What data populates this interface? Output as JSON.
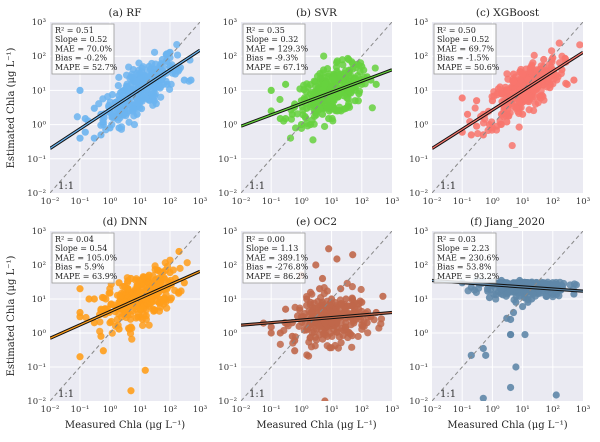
{
  "figure": {
    "ylabel": "Estimated Chla (μg L⁻¹)",
    "xlabel": "Measured Chla  (μg L⁻¹)",
    "one_to_one_label": "1:1",
    "axis_min_exp": -2,
    "axis_max_exp": 3,
    "tick_labels": [
      "10⁻²",
      "10⁻¹",
      "10⁰",
      "10¹",
      "10²",
      "10³"
    ],
    "background_color": "#eaeaf2",
    "grid_color": "#ffffff",
    "regression_outline_color": "#111111",
    "identity_line_color": "#888888"
  },
  "chart_data": [
    {
      "type": "scatter",
      "title": "(a) RF",
      "color": "#6cb4f0",
      "xlabel": "",
      "ylabel": "Estimated Chla (μg L⁻¹)",
      "xlim": [
        0.01,
        1000
      ],
      "ylim": [
        0.01,
        1000
      ],
      "scale": "log",
      "stats": {
        "R2": "0.51",
        "Slope": "0.52",
        "MAE": "70.0%",
        "Bias": "-0.2%",
        "MAPE": "52.7%"
      },
      "fit_line": {
        "x": [
          0.01,
          1000
        ],
        "y": [
          0.2,
          150
        ]
      },
      "points": {
        "x": [
          0.1,
          0.1,
          0.15,
          0.15,
          0.3,
          0.3,
          0.5,
          0.6,
          1,
          1,
          2,
          2,
          3,
          4,
          5,
          5,
          6,
          8,
          10,
          10,
          12,
          15,
          20,
          20,
          25,
          30,
          40,
          50,
          60,
          80,
          100,
          100,
          150,
          200,
          300,
          500,
          0.5,
          2,
          8,
          30
        ],
        "y": [
          10,
          0.4,
          0.6,
          1.5,
          0.4,
          3,
          0.5,
          1,
          0.8,
          3,
          2,
          7,
          10,
          5,
          15,
          25,
          3,
          10,
          10,
          30,
          6,
          20,
          15,
          50,
          8,
          40,
          20,
          60,
          30,
          15,
          50,
          130,
          30,
          40,
          20,
          20,
          2,
          0.8,
          2,
          5
        ]
      }
    },
    {
      "type": "scatter",
      "title": "(b) SVR",
      "color": "#66d13e",
      "xlabel": "",
      "ylabel": "",
      "xlim": [
        0.01,
        1000
      ],
      "ylim": [
        0.01,
        1000
      ],
      "scale": "log",
      "stats": {
        "R2": "0.35",
        "Slope": "0.32",
        "MAE": "129.3%",
        "Bias": "-9.3%",
        "MAPE": "67.1%"
      },
      "fit_line": {
        "x": [
          0.01,
          1000
        ],
        "y": [
          0.9,
          40
        ]
      },
      "points": {
        "x": [
          0.1,
          0.1,
          0.3,
          0.3,
          0.5,
          0.6,
          1,
          1,
          1.5,
          2,
          3,
          4,
          5,
          5,
          6,
          8,
          10,
          10,
          12,
          15,
          20,
          20,
          25,
          30,
          40,
          50,
          60,
          80,
          100,
          100,
          150,
          200,
          300,
          0.2,
          2,
          8,
          30,
          60
        ],
        "y": [
          2.5,
          10,
          1.5,
          15,
          2,
          4,
          1,
          5,
          3,
          8,
          5,
          3,
          10,
          2,
          15,
          6,
          8,
          20,
          5,
          12,
          10,
          30,
          7,
          15,
          12,
          60,
          20,
          8,
          15,
          50,
          25,
          20,
          15,
          1.5,
          1,
          1.5,
          3,
          5
        ]
      }
    },
    {
      "type": "scatter",
      "title": "(c) XGBoost",
      "color": "#f8766d",
      "xlabel": "",
      "ylabel": "",
      "xlim": [
        0.01,
        1000
      ],
      "ylim": [
        0.01,
        1000
      ],
      "scale": "log",
      "stats": {
        "R2": "0.50",
        "Slope": "0.52",
        "MAE": "69.7%",
        "Bias": "-1.5%",
        "MAPE": "50.6%"
      },
      "fit_line": {
        "x": [
          0.01,
          1000
        ],
        "y": [
          0.2,
          130
        ]
      },
      "points": {
        "x": [
          0.1,
          0.1,
          0.15,
          0.2,
          0.3,
          0.3,
          0.5,
          0.5,
          1,
          1,
          2,
          2,
          3,
          4,
          5,
          5,
          6,
          8,
          10,
          10,
          12,
          15,
          20,
          20,
          25,
          30,
          40,
          50,
          60,
          80,
          100,
          100,
          150,
          200,
          300,
          500,
          0.8,
          3,
          10,
          40
        ],
        "y": [
          6,
          0.6,
          2,
          0.5,
          0.9,
          5,
          0.5,
          2,
          0.8,
          5,
          2,
          8,
          10,
          4,
          18,
          30,
          3,
          10,
          8,
          30,
          6,
          20,
          15,
          50,
          10,
          40,
          20,
          80,
          30,
          12,
          40,
          90,
          25,
          40,
          15,
          20,
          1,
          1.2,
          2,
          6
        ]
      }
    },
    {
      "type": "scatter",
      "title": "(d) DNN",
      "color": "#ff9e1b",
      "xlabel": "Measured Chla  (μg L⁻¹)",
      "ylabel": "Estimated Chla (μg L⁻¹)",
      "xlim": [
        0.01,
        1000
      ],
      "ylim": [
        0.01,
        1000
      ],
      "scale": "log",
      "stats": {
        "R2": "0.04",
        "Slope": "0.54",
        "MAE": "105.0%",
        "Bias": "5.9%",
        "MAPE": "63.9%"
      },
      "fit_line": {
        "x": [
          0.01,
          1000
        ],
        "y": [
          0.7,
          65
        ]
      },
      "points": {
        "x": [
          0.1,
          0.1,
          0.1,
          0.1,
          0.2,
          0.3,
          0.3,
          0.5,
          0.6,
          1,
          1,
          2,
          2,
          3,
          4,
          5,
          5,
          6,
          8,
          10,
          10,
          12,
          15,
          15,
          20,
          20,
          25,
          30,
          40,
          50,
          60,
          80,
          100,
          100,
          150,
          200,
          300,
          5,
          0.5,
          2
        ],
        "y": [
          0.2,
          3,
          4,
          20,
          10,
          2,
          10,
          5,
          0.3,
          2,
          15,
          8,
          30,
          5,
          20,
          1.5,
          40,
          10,
          25,
          15,
          5,
          30,
          0.08,
          10,
          50,
          20,
          8,
          15,
          30,
          40,
          10,
          20,
          30,
          60,
          40,
          250,
          30,
          0.02,
          0.8,
          1.3
        ]
      }
    },
    {
      "type": "scatter",
      "title": "(e) OC2",
      "color": "#c0674a",
      "xlabel": "Measured Chla  (μg L⁻¹)",
      "ylabel": "",
      "xlim": [
        0.01,
        1000
      ],
      "ylim": [
        0.01,
        1000
      ],
      "scale": "log",
      "stats": {
        "R2": "0.00",
        "Slope": "1.13",
        "MAE": "389.1%",
        "Bias": "-276.8%",
        "MAPE": "86.2%"
      },
      "fit_line": {
        "x": [
          0.01,
          1000
        ],
        "y": [
          1.7,
          4
        ]
      },
      "points": {
        "x": [
          0.1,
          0.1,
          0.2,
          0.3,
          0.5,
          0.5,
          0.6,
          1,
          1,
          1.5,
          2,
          2,
          3,
          3,
          4,
          5,
          5,
          6,
          8,
          8,
          10,
          10,
          15,
          15,
          20,
          20,
          30,
          40,
          50,
          60,
          80,
          100,
          150,
          200,
          300,
          500,
          6,
          0.6,
          2,
          25
        ],
        "y": [
          1,
          1.5,
          1,
          5,
          2,
          0.8,
          0.3,
          3,
          50,
          10,
          2,
          8,
          100,
          3,
          20,
          40,
          5,
          2,
          300,
          3,
          10,
          2,
          150,
          4,
          20,
          3,
          10,
          3,
          200,
          5,
          3,
          8,
          2,
          3,
          4,
          12,
          0.01,
          0.6,
          1.5,
          1.2
        ]
      }
    },
    {
      "type": "scatter",
      "title": "(f) Jiang_2020",
      "color": "#5f87a8",
      "xlabel": "Measured Chla  (μg L⁻¹)",
      "ylabel": "",
      "xlim": [
        0.01,
        1000
      ],
      "ylim": [
        0.01,
        1000
      ],
      "scale": "log",
      "stats": {
        "R2": "0.03",
        "Slope": "2.23",
        "MAE": "230.6%",
        "Bias": "53.8%",
        "MAPE": "93.2%"
      },
      "fit_line": {
        "x": [
          0.01,
          1000
        ],
        "y": [
          35,
          17
        ]
      },
      "points": {
        "x": [
          0.1,
          0.2,
          0.3,
          0.5,
          0.7,
          0.8,
          1,
          1,
          2,
          2,
          3,
          3,
          4,
          4,
          5,
          5,
          6,
          6,
          8,
          8,
          10,
          10,
          15,
          15,
          20,
          20,
          30,
          40,
          50,
          60,
          100,
          100,
          200,
          500,
          0.2,
          0.5,
          0.6,
          4,
          6,
          4,
          12,
          130,
          0.5,
          3
        ],
        "y": [
          30,
          22,
          35,
          32,
          17,
          11,
          30,
          25,
          35,
          20,
          30,
          25,
          2.5,
          0.9,
          30,
          4,
          25,
          8,
          35,
          12,
          30,
          6,
          30,
          8,
          25,
          10,
          30,
          15,
          30,
          12,
          20,
          30,
          25,
          14,
          0.22,
          0.35,
          0.22,
          0.025,
          0.1,
          0.9,
          0.9,
          0.015,
          0.012,
          2.7
        ]
      }
    }
  ]
}
